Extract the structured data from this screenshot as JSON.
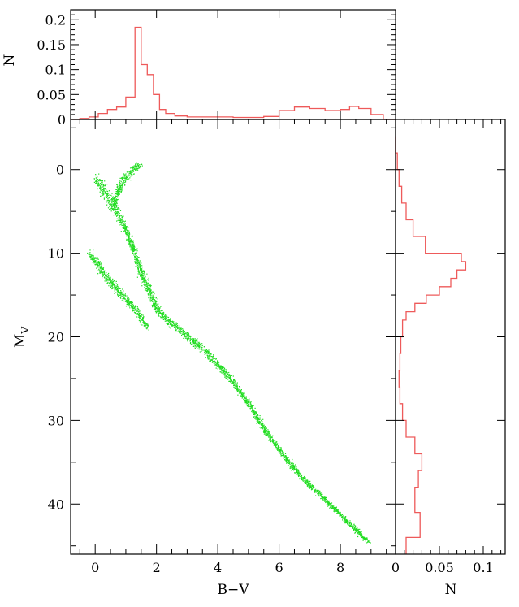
{
  "chart_data": [
    {
      "panel": "top-histogram",
      "type": "histogram",
      "xlabel": "",
      "ylabel": "N",
      "xlim": [
        -0.8,
        9.8
      ],
      "ylim": [
        0,
        0.22
      ],
      "y_ticks": [
        0,
        0.05,
        0.1,
        0.15,
        0.2
      ],
      "y_tick_labels": [
        "0",
        "0.05",
        "0.1",
        "0.15",
        "0.2"
      ],
      "series_color": "#ee5a5a",
      "bin_edges": [
        -0.8,
        -0.5,
        -0.2,
        0.1,
        0.4,
        0.7,
        1.0,
        1.3,
        1.5,
        1.7,
        1.9,
        2.1,
        2.3,
        2.6,
        3.0,
        3.5,
        4.0,
        4.5,
        5.0,
        5.5,
        6.0,
        6.5,
        7.0,
        7.5,
        8.0,
        8.3,
        8.6,
        9.0,
        9.4,
        9.8
      ],
      "values": [
        0.0,
        0.002,
        0.005,
        0.012,
        0.02,
        0.025,
        0.045,
        0.185,
        0.11,
        0.09,
        0.05,
        0.02,
        0.012,
        0.007,
        0.005,
        0.005,
        0.005,
        0.004,
        0.004,
        0.006,
        0.018,
        0.025,
        0.022,
        0.018,
        0.02,
        0.026,
        0.022,
        0.01,
        0.0
      ]
    },
    {
      "panel": "main-scatter",
      "type": "scatter",
      "xlabel": "B−V",
      "ylabel": "M",
      "ylabel_subscript": "V",
      "xlim": [
        -0.8,
        9.8
      ],
      "ylim": [
        46,
        -6
      ],
      "x_ticks": [
        0,
        2,
        4,
        6,
        8
      ],
      "x_tick_labels": [
        "0",
        "2",
        "4",
        "6",
        "8"
      ],
      "y_ticks": [
        0,
        10,
        20,
        30,
        40
      ],
      "y_tick_labels": [
        "0",
        "10",
        "20",
        "30",
        "40"
      ],
      "point_color": "#22dd22",
      "series": [
        {
          "role": "main-sequence",
          "points": [
            [
              0.0,
              1.0
            ],
            [
              0.3,
              2.5
            ],
            [
              0.6,
              4.5
            ],
            [
              0.9,
              6.5
            ],
            [
              1.2,
              9.0
            ],
            [
              1.5,
              12.5
            ],
            [
              1.8,
              15.0
            ],
            [
              2.0,
              16.5
            ],
            [
              2.2,
              17.5
            ],
            [
              2.7,
              19.0
            ],
            [
              3.2,
              20.5
            ],
            [
              3.8,
              22.5
            ],
            [
              4.4,
              25.0
            ],
            [
              5.0,
              28.0
            ],
            [
              5.6,
              31.5
            ],
            [
              6.2,
              34.5
            ],
            [
              6.8,
              37.0
            ],
            [
              7.5,
              39.5
            ],
            [
              8.2,
              42.0
            ],
            [
              8.9,
              44.5
            ]
          ],
          "width": [
            0.8,
            1.2,
            1.0,
            0.8,
            0.8,
            0.9,
            1.0,
            0.8,
            0.6,
            0.6,
            0.6,
            0.6,
            0.5,
            0.5,
            0.4,
            0.4,
            0.4,
            0.3,
            0.3,
            0.3
          ]
        },
        {
          "role": "giant-branch",
          "points": [
            [
              0.6,
              4.0
            ],
            [
              0.75,
              2.5
            ],
            [
              0.9,
              1.2
            ],
            [
              1.1,
              0.5
            ],
            [
              1.3,
              -0.3
            ],
            [
              1.5,
              -0.7
            ]
          ],
          "width": [
            0.8,
            0.8,
            0.7,
            0.7,
            0.6,
            0.5
          ]
        },
        {
          "role": "white-dwarf-sequence",
          "points": [
            [
              -0.2,
              10.0
            ],
            [
              0.2,
              12.0
            ],
            [
              0.6,
              14.0
            ],
            [
              1.0,
              15.5
            ],
            [
              1.4,
              17.2
            ],
            [
              1.7,
              18.8
            ]
          ],
          "width": [
            0.5,
            0.8,
            0.7,
            0.7,
            0.6,
            0.5
          ]
        }
      ]
    },
    {
      "panel": "right-histogram",
      "type": "histogram",
      "orientation": "horizontal",
      "xlabel": "N",
      "ylabel": "",
      "xlim": [
        0,
        0.125
      ],
      "ylim": [
        46,
        -6
      ],
      "x_ticks": [
        0,
        0.05,
        0.1
      ],
      "x_tick_labels": [
        "0",
        "0.05",
        "0.1"
      ],
      "series_color": "#ee5a5a",
      "bin_edges": [
        -4,
        -2,
        0,
        2,
        4,
        6,
        8,
        10,
        11,
        12,
        13,
        14,
        15,
        16,
        17,
        18,
        20,
        22,
        24,
        26,
        28,
        30,
        32,
        34,
        36,
        38,
        41,
        44,
        46
      ],
      "values": [
        0.0,
        0.002,
        0.004,
        0.007,
        0.012,
        0.02,
        0.034,
        0.075,
        0.08,
        0.07,
        0.063,
        0.05,
        0.035,
        0.022,
        0.012,
        0.008,
        0.006,
        0.005,
        0.004,
        0.005,
        0.008,
        0.012,
        0.022,
        0.03,
        0.026,
        0.022,
        0.028,
        0.012
      ]
    }
  ]
}
